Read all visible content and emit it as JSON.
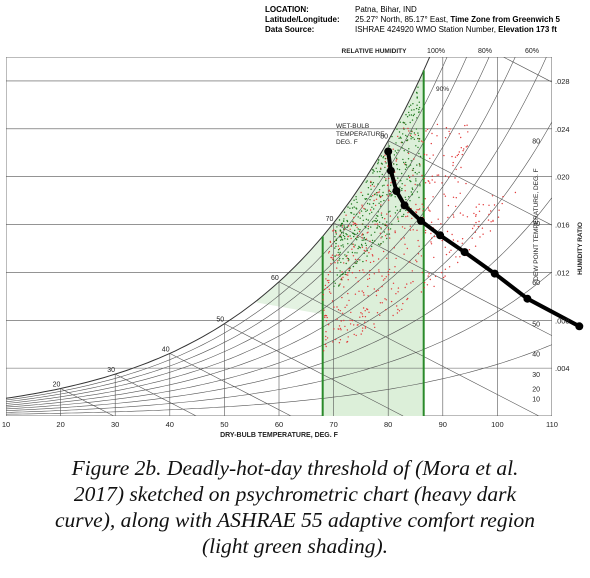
{
  "header": {
    "location_label": "LOCATION:",
    "location_value": "Patna, Bihar, IND",
    "latlon_label": "Latitude/Longitude:",
    "latlon_value_a": "25.27° North, 85.17° East, ",
    "latlon_value_b": "Time Zone from Greenwich 5",
    "source_label": "Data Source:",
    "source_value_a": "ISHRAE    424920 WMO Station Number, ",
    "source_value_b": "Elevation 173 ft"
  },
  "caption": {
    "lines": [
      "Figure 2b.  Deadly-hot-day threshold of (Mora et al.",
      "2017) sketched on psychrometric chart (heavy dark",
      "curve), along with ASHRAE 55 adaptive comfort region",
      "(light green shading)."
    ]
  },
  "chart_data": {
    "type": "scatter",
    "title": "",
    "xlabel": "DRY-BULB TEMPERATURE, DEG. F",
    "ylabel": "HUMIDITY RATIO",
    "xlim": [
      10,
      110
    ],
    "ylim": [
      0,
      0.03
    ],
    "x_ticks": [
      10,
      20,
      30,
      40,
      50,
      60,
      70,
      80,
      90,
      100,
      110
    ],
    "y_ticks": [
      0.004,
      0.008,
      0.012,
      0.016,
      0.02,
      0.024,
      0.028
    ],
    "y_tick_labels": [
      ".004",
      ".008",
      ".012",
      ".016",
      ".020",
      ".024",
      ".028"
    ],
    "relative_humidity_label": "RELATIVE HUMIDITY",
    "rh_top_labels": [
      "100%",
      "80%",
      "60%"
    ],
    "rh_inline_label": "90%",
    "wet_bulb_label": [
      "WET-BULB",
      "TEMPERATURE",
      "DEG. F"
    ],
    "wet_bulb_ticks": [
      20,
      30,
      40,
      50,
      60,
      70,
      80
    ],
    "dew_point_label": "DEW POINT TEMPERATURE, DEG. F",
    "dew_point_ticks": [
      10,
      20,
      30,
      40,
      50,
      60,
      70,
      80
    ],
    "comfort_region_vertical_lines_f": [
      68,
      86.5
    ],
    "deadly_threshold_curve": {
      "name": "Deadly-hot-day threshold",
      "points": [
        [
          80,
          0.0221
        ],
        [
          80.5,
          0.0205
        ],
        [
          81.5,
          0.0188
        ],
        [
          83,
          0.0176
        ],
        [
          86,
          0.0163
        ],
        [
          89.5,
          0.0151
        ],
        [
          94,
          0.0137
        ],
        [
          99.5,
          0.0119
        ],
        [
          105.5,
          0.0098
        ],
        [
          115,
          0.0075
        ]
      ]
    },
    "scatter_series": [
      {
        "color": "#e23a3a"
      },
      {
        "color": "#1f7a1f"
      }
    ],
    "colors": {
      "comfort_fill": "#dcefd9",
      "comfort_line": "#2a8a2a",
      "threshold_curve": "#000000",
      "grid": "#555555"
    },
    "legend": "none"
  }
}
